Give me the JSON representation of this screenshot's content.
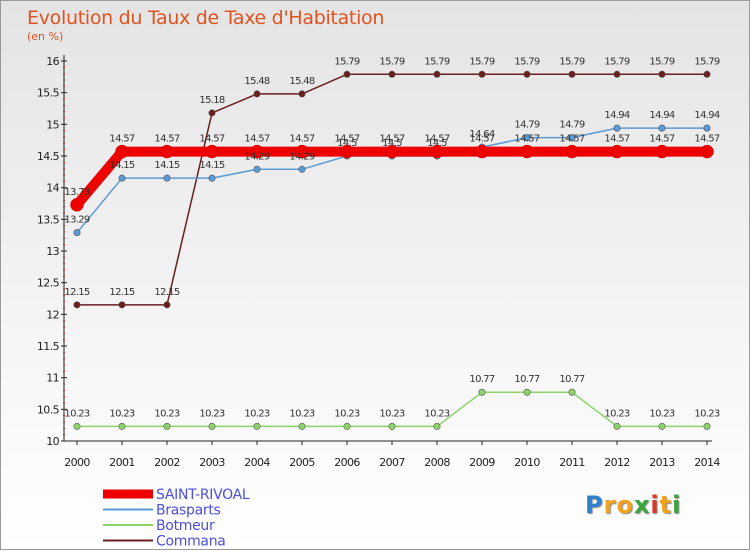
{
  "header": {
    "title": "Evolution du Taux de Taxe d'Habitation",
    "subtitle": "(en %)"
  },
  "logo": {
    "letters": [
      {
        "char": "P",
        "color": "#2f7fd1"
      },
      {
        "char": "r",
        "color": "#f2a21b"
      },
      {
        "char": "o",
        "color": "#f2a21b"
      },
      {
        "char": "x",
        "color": "#3aa53a"
      },
      {
        "char": "i",
        "color": "#d83a2a"
      },
      {
        "char": "t",
        "color": "#f2a21b"
      },
      {
        "char": "i",
        "color": "#3aa53a"
      }
    ]
  },
  "chart_data": {
    "type": "line",
    "title": "Evolution du Taux de Taxe d'Habitation",
    "ylabel": "(en %)",
    "xlabel": "",
    "x": [
      "2000",
      "2001",
      "2002",
      "2003",
      "2004",
      "2005",
      "2006",
      "2007",
      "2008",
      "2009",
      "2010",
      "2011",
      "2012",
      "2013",
      "2014"
    ],
    "ylim": [
      10,
      16
    ],
    "yticks": [
      "10",
      "10.5",
      "11",
      "11.5",
      "12",
      "12.5",
      "13",
      "13.5",
      "14",
      "14.5",
      "15",
      "15.5",
      "16"
    ],
    "grid": false,
    "legend_position": "bottom-left",
    "series": [
      {
        "name": "SAINT-RIVOAL",
        "color": "#ee0000",
        "values": [
          13.73,
          14.57,
          14.57,
          14.57,
          14.57,
          14.57,
          14.57,
          14.57,
          14.57,
          14.57,
          14.57,
          14.57,
          14.57,
          14.57,
          14.57
        ],
        "labels": [
          "13.73",
          "14.57",
          "14.57",
          "14.57",
          "14.57",
          "14.57",
          "14.57",
          "14.57",
          "14.57",
          "14.57",
          "14.57",
          "14.57",
          "14.57",
          "14.57",
          "14.57"
        ]
      },
      {
        "name": "Brasparts",
        "color": "#5b9bd5",
        "values": [
          13.29,
          14.15,
          14.15,
          14.15,
          14.29,
          14.29,
          14.5,
          14.5,
          14.5,
          14.64,
          14.79,
          14.79,
          14.94,
          14.94,
          14.94
        ],
        "labels": [
          "13.29",
          "14.15",
          "14.15",
          "14.15",
          "14.29",
          "14.29",
          "14.5",
          "14.5",
          "14.5",
          "14.64",
          "14.79",
          "14.79",
          "14.94",
          "14.94",
          "14.94"
        ]
      },
      {
        "name": "Botmeur",
        "color": "#8ed36a",
        "values": [
          10.23,
          10.23,
          10.23,
          10.23,
          10.23,
          10.23,
          10.23,
          10.23,
          10.23,
          10.77,
          10.77,
          10.77,
          10.23,
          10.23,
          10.23
        ],
        "labels": [
          "10.23",
          "10.23",
          "10.23",
          "10.23",
          "10.23",
          "10.23",
          "10.23",
          "10.23",
          "10.23",
          "10.77",
          "10.77",
          "10.77",
          "10.23",
          "10.23",
          "10.23"
        ]
      },
      {
        "name": "Commana",
        "color": "#6b1e1e",
        "values": [
          12.15,
          12.15,
          12.15,
          15.18,
          15.48,
          15.48,
          15.79,
          15.79,
          15.79,
          15.79,
          15.79,
          15.79,
          15.79,
          15.79,
          15.79
        ],
        "labels": [
          "12.15",
          "12.15",
          "12.15",
          "15.18",
          "15.48",
          "15.48",
          "15.79",
          "15.79",
          "15.79",
          "15.79",
          "15.79",
          "15.79",
          "15.79",
          "15.79",
          "15.79"
        ]
      }
    ]
  }
}
